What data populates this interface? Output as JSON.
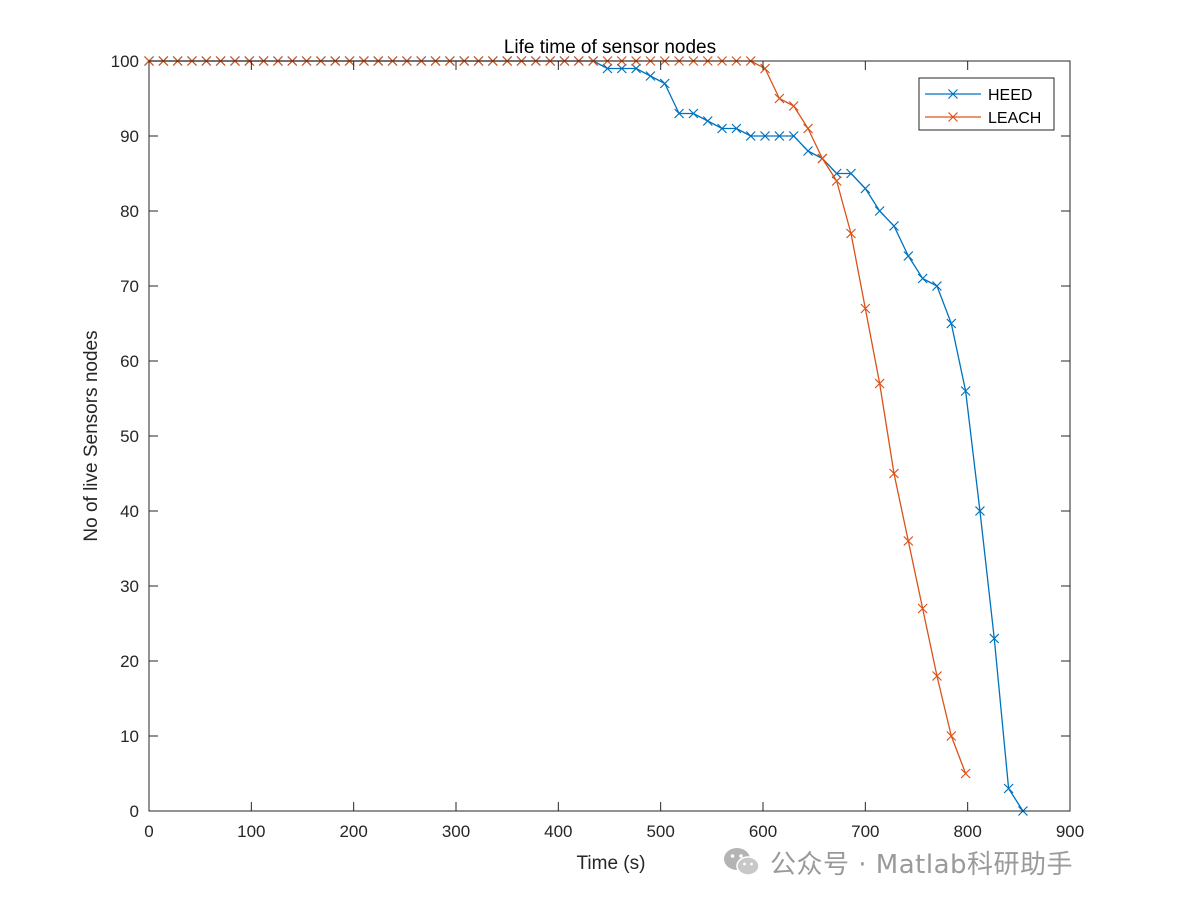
{
  "watermark": {
    "text": "公众号 · Matlab科研助手",
    "icon": "wechat-icon"
  },
  "chart_data": {
    "type": "line",
    "title": "Life time of sensor nodes",
    "xlabel": "Time (s)",
    "ylabel": "No of live Sensors nodes",
    "xlim": [
      0,
      900
    ],
    "ylim": [
      0,
      100
    ],
    "xticks": [
      0,
      100,
      200,
      300,
      400,
      500,
      600,
      700,
      800,
      900
    ],
    "yticks": [
      0,
      10,
      20,
      30,
      40,
      50,
      60,
      70,
      80,
      90,
      100
    ],
    "grid": false,
    "legend_position": "top-right",
    "marker": "x",
    "series": [
      {
        "name": "HEED",
        "color": "#0072BD",
        "x": [
          0,
          14,
          28,
          42,
          56,
          70,
          84,
          98,
          112,
          126,
          140,
          154,
          168,
          182,
          196,
          210,
          224,
          238,
          252,
          266,
          280,
          294,
          308,
          322,
          336,
          350,
          364,
          378,
          392,
          406,
          420,
          434,
          448,
          462,
          476,
          490,
          504,
          518,
          532,
          546,
          560,
          574,
          588,
          602,
          616,
          630,
          644,
          658,
          672,
          686,
          700,
          714,
          728,
          742,
          756,
          770,
          784,
          798,
          812,
          826,
          840,
          854
        ],
        "y": [
          100,
          100,
          100,
          100,
          100,
          100,
          100,
          100,
          100,
          100,
          100,
          100,
          100,
          100,
          100,
          100,
          100,
          100,
          100,
          100,
          100,
          100,
          100,
          100,
          100,
          100,
          100,
          100,
          100,
          100,
          100,
          100,
          99,
          99,
          99,
          98,
          97,
          93,
          93,
          92,
          91,
          91,
          90,
          90,
          90,
          90,
          88,
          87,
          85,
          85,
          83,
          80,
          78,
          74,
          71,
          70,
          65,
          56,
          40,
          23,
          3,
          0
        ]
      },
      {
        "name": "LEACH",
        "color": "#D95319",
        "x": [
          0,
          14,
          28,
          42,
          56,
          70,
          84,
          98,
          112,
          126,
          140,
          154,
          168,
          182,
          196,
          210,
          224,
          238,
          252,
          266,
          280,
          294,
          308,
          322,
          336,
          350,
          364,
          378,
          392,
          406,
          420,
          434,
          448,
          462,
          476,
          490,
          504,
          518,
          532,
          546,
          560,
          574,
          588,
          602,
          616,
          630,
          644,
          658,
          672,
          686,
          700,
          714,
          728,
          742,
          756,
          770,
          784,
          798
        ],
        "y": [
          100,
          100,
          100,
          100,
          100,
          100,
          100,
          100,
          100,
          100,
          100,
          100,
          100,
          100,
          100,
          100,
          100,
          100,
          100,
          100,
          100,
          100,
          100,
          100,
          100,
          100,
          100,
          100,
          100,
          100,
          100,
          100,
          100,
          100,
          100,
          100,
          100,
          100,
          100,
          100,
          100,
          100,
          100,
          99,
          95,
          94,
          91,
          87,
          84,
          77,
          67,
          57,
          45,
          36,
          27,
          18,
          10,
          5
        ]
      }
    ]
  }
}
